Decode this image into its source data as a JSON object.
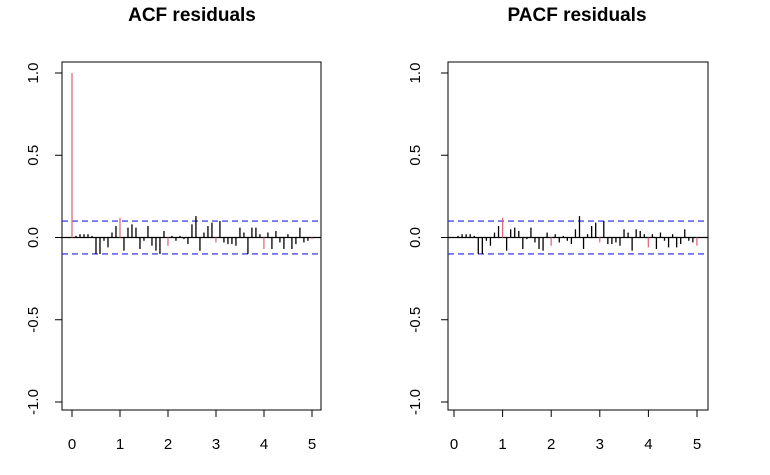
{
  "chart_data": [
    {
      "type": "bar",
      "title": "ACF residuals",
      "xlabel": "",
      "ylabel": "",
      "xlim": [
        0,
        5
      ],
      "ylim": [
        -1.0,
        1.0
      ],
      "x_ticks": [
        "0",
        "1",
        "2",
        "3",
        "4",
        "5"
      ],
      "y_ticks": [
        "-1.0",
        "-0.5",
        "0.0",
        "0.5",
        "1.0"
      ],
      "confidence_band": [
        -0.1,
        0.1
      ],
      "grid": false,
      "colors": {
        "seasonal_lag": "#e06a80",
        "other_lag": "#000000",
        "band": "#2020e0"
      },
      "lag_step": 0.0833,
      "values": [
        1.0,
        0.01,
        0.02,
        0.02,
        0.02,
        0.01,
        -0.1,
        -0.1,
        -0.02,
        -0.06,
        0.03,
        0.07,
        0.12,
        -0.08,
        0.06,
        0.08,
        0.06,
        -0.07,
        -0.02,
        0.07,
        -0.05,
        -0.08,
        -0.1,
        0.04,
        -0.05,
        0.01,
        -0.02,
        0.01,
        -0.01,
        -0.04,
        0.08,
        0.13,
        -0.08,
        0.03,
        0.07,
        0.09,
        -0.03,
        0.1,
        -0.03,
        -0.04,
        -0.04,
        -0.05,
        0.06,
        0.03,
        -0.1,
        0.06,
        0.06,
        0.02,
        -0.07,
        0.03,
        -0.07,
        0.04,
        -0.03,
        -0.07,
        0.02,
        -0.07,
        -0.04,
        0.06,
        -0.03,
        -0.02,
        -0.01
      ]
    },
    {
      "type": "bar",
      "title": "PACF residuals",
      "xlabel": "",
      "ylabel": "",
      "xlim": [
        0,
        5
      ],
      "ylim": [
        -1.0,
        1.0
      ],
      "x_ticks": [
        "0",
        "1",
        "2",
        "3",
        "4",
        "5"
      ],
      "y_ticks": [
        "-1.0",
        "-0.5",
        "0.0",
        "0.5",
        "1.0"
      ],
      "confidence_band": [
        -0.1,
        0.1
      ],
      "grid": false,
      "colors": {
        "seasonal_lag": "#e06a80",
        "other_lag": "#000000",
        "band": "#2020e0"
      },
      "lag_step": 0.0833,
      "values": [
        0.01,
        0.02,
        0.02,
        0.02,
        0.01,
        -0.1,
        -0.1,
        -0.02,
        -0.05,
        0.03,
        0.07,
        0.12,
        -0.08,
        0.05,
        0.06,
        0.04,
        -0.07,
        -0.01,
        0.06,
        -0.03,
        -0.07,
        -0.08,
        0.03,
        -0.05,
        0.02,
        -0.03,
        0.01,
        -0.02,
        -0.04,
        0.05,
        0.13,
        -0.07,
        0.02,
        0.07,
        0.09,
        -0.03,
        0.1,
        -0.04,
        -0.04,
        -0.03,
        -0.05,
        0.05,
        0.03,
        -0.08,
        0.05,
        0.04,
        0.02,
        -0.06,
        0.02,
        -0.07,
        0.03,
        -0.02,
        -0.06,
        0.02,
        -0.06,
        -0.04,
        0.05,
        -0.02,
        -0.03,
        -0.05
      ]
    }
  ]
}
